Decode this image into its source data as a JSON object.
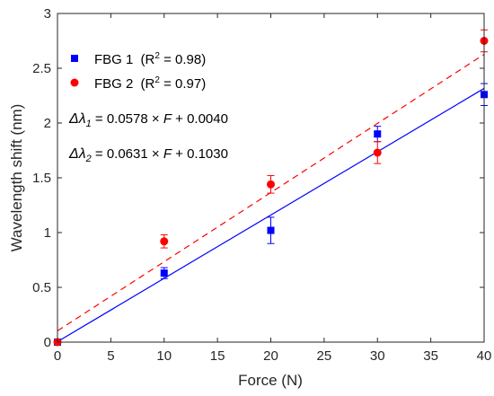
{
  "chart_data": {
    "type": "scatter",
    "xlabel": "Force (N)",
    "ylabel": "Wavelength shift (nm)",
    "xlim": [
      0,
      40
    ],
    "ylim": [
      0,
      3
    ],
    "xticks": [
      "0",
      "5",
      "10",
      "15",
      "20",
      "25",
      "30",
      "35",
      "40"
    ],
    "yticks": [
      "0",
      "0.5",
      "1",
      "1.5",
      "2",
      "2.5",
      "3"
    ],
    "grid": false,
    "legend_position": "top-left",
    "series": [
      {
        "name": "FBG 1",
        "r2_label": "(R",
        "r2_sup": "2",
        "r2_value": " = 0.98)",
        "marker": "square",
        "color": "#0000ff",
        "x": [
          0,
          10,
          20,
          30,
          40
        ],
        "y": [
          0,
          0.63,
          1.02,
          1.9,
          2.26
        ],
        "err": [
          0,
          0.05,
          0.12,
          0.07,
          0.1
        ],
        "fit": {
          "slope": 0.0578,
          "intercept": 0.004,
          "style": "solid"
        }
      },
      {
        "name": "FBG 2",
        "r2_label": "(R",
        "r2_sup": "2",
        "r2_value": " = 0.97)",
        "marker": "circle",
        "color": "#ff0000",
        "x": [
          0,
          10,
          20,
          30,
          40
        ],
        "y": [
          0,
          0.92,
          1.44,
          1.73,
          2.75
        ],
        "err": [
          0,
          0.06,
          0.08,
          0.1,
          0.1
        ],
        "fit": {
          "slope": 0.0631,
          "intercept": 0.103,
          "style": "dashed"
        }
      }
    ],
    "annotations": [
      {
        "delta": "Δλ",
        "sub": "1",
        "rest": " = 0.0578 × ",
        "var": "F",
        "tail": " + 0.0040"
      },
      {
        "delta": "Δλ",
        "sub": "2",
        "rest": " = 0.0631 × ",
        "var": "F",
        "tail": " + 0.1030"
      }
    ]
  }
}
